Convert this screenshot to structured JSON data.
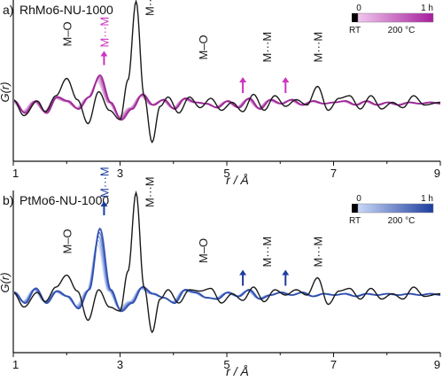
{
  "chart_data": [
    {
      "type": "line",
      "panel": "a)",
      "title": "RhMo6-NU-1000",
      "xlabel": "r / Å",
      "ylabel": "G(r)",
      "xlim": [
        1,
        9
      ],
      "xticks": [
        "1",
        "3",
        "5",
        "7",
        "9"
      ],
      "grid": false,
      "legend": {
        "placement": "top-right",
        "start_label": "0",
        "end_label": "1 h",
        "rt_label": "RT",
        "temp_label": "200 °C",
        "color_start": "#f0c6ee",
        "color_end": "#a61f9c"
      },
      "series_colors": [
        "#e3b8e0",
        "#d598d1",
        "#c271bd",
        "#ad47a6",
        "#9a1f92"
      ],
      "reference_color": "#1a1a1a",
      "reference": {
        "x": [
          1.0,
          1.2,
          1.45,
          1.6,
          1.8,
          2.0,
          2.2,
          2.4,
          2.6,
          2.8,
          3.0,
          3.15,
          3.3,
          3.45,
          3.6,
          3.75,
          3.9,
          4.1,
          4.3,
          4.5,
          4.7,
          4.9,
          5.1,
          5.3,
          5.5,
          5.7,
          5.9,
          6.1,
          6.3,
          6.5,
          6.7,
          6.9,
          7.1,
          7.3,
          7.5,
          7.7,
          7.9,
          8.1,
          8.3,
          8.5,
          8.7,
          9.0
        ],
        "y": [
          0.15,
          -0.45,
          0.1,
          -0.3,
          0.3,
          0.95,
          0.15,
          -0.75,
          0.45,
          -0.25,
          -0.6,
          0.9,
          3.85,
          0.3,
          -1.45,
          -0.1,
          0.25,
          -0.35,
          0.25,
          -0.15,
          0.2,
          -0.25,
          0.05,
          -0.3,
          0.35,
          -0.25,
          0.3,
          -0.1,
          0.15,
          -0.05,
          0.65,
          -0.25,
          0.2,
          0.3,
          -0.2,
          0.3,
          -0.2,
          0.05,
          -0.15,
          0.3,
          -0.05,
          0.05
        ]
      },
      "insitu_base": {
        "x": [
          1.0,
          1.2,
          1.4,
          1.6,
          1.8,
          2.0,
          2.2,
          2.4,
          2.6,
          2.8,
          3.0,
          3.2,
          3.4,
          3.6,
          3.8,
          4.0,
          4.2,
          4.4,
          4.6,
          4.8,
          5.0,
          5.2,
          5.4,
          5.6,
          5.8,
          6.0,
          6.2,
          6.4,
          6.6,
          6.8,
          7.0,
          7.2,
          7.4,
          7.6,
          7.8,
          8.0,
          8.2,
          8.4,
          8.6,
          8.8,
          9.0
        ],
        "y": [
          0.1,
          -0.35,
          0.1,
          -0.35,
          0.25,
          0.1,
          -0.2,
          0.25,
          1.05,
          0.05,
          -0.6,
          -0.2,
          0.35,
          -0.05,
          0.15,
          -0.2,
          0.2,
          0.05,
          0.0,
          -0.15,
          0.1,
          -0.15,
          0.2,
          -0.2,
          0.15,
          0.0,
          0.15,
          -0.05,
          0.1,
          0.0,
          0.05,
          0.1,
          -0.05,
          0.1,
          -0.05,
          0.05,
          -0.05,
          0.05,
          0.0,
          0.05,
          0.0
        ]
      },
      "annotations": [
        {
          "text": "M–O",
          "x": 2.0,
          "y": 2.15,
          "color": "#1a1a1a",
          "arrow": false
        },
        {
          "text": "M···M",
          "x": 2.7,
          "y": 2.05,
          "color": "#cc33c0",
          "arrow": true
        },
        {
          "text": "M···M",
          "x": 3.55,
          "y": 3.3,
          "color": "#1a1a1a",
          "arrow": false
        },
        {
          "text": "M–O",
          "x": 4.55,
          "y": 1.65,
          "color": "#1a1a1a",
          "arrow": false
        },
        {
          "text": "",
          "x": 5.3,
          "y": 0.6,
          "color": "#cc33c0",
          "arrow": true
        },
        {
          "text": "M···M",
          "x": 5.75,
          "y": 1.55,
          "color": "#1a1a1a",
          "arrow": false
        },
        {
          "text": "",
          "x": 6.1,
          "y": 0.6,
          "color": "#cc33c0",
          "arrow": true
        },
        {
          "text": "M···M",
          "x": 6.7,
          "y": 1.55,
          "color": "#1a1a1a",
          "arrow": false
        }
      ]
    },
    {
      "type": "line",
      "panel": "b)",
      "title": "PtMo6-NU-1000",
      "xlabel": "r / Å",
      "ylabel": "G(r)",
      "xlim": [
        1,
        9
      ],
      "xticks": [
        "1",
        "3",
        "5",
        "7",
        "9"
      ],
      "grid": false,
      "legend": {
        "placement": "top-right",
        "start_label": "0",
        "end_label": "1 h",
        "rt_label": "RT",
        "temp_label": "200 °C",
        "color_start": "#c9d8f7",
        "color_end": "#1d3d9e"
      },
      "series_colors": [
        "#c6d3f2",
        "#9fb4e8",
        "#7792db",
        "#4d6ccb",
        "#2747a8"
      ],
      "reference_color": "#1a1a1a",
      "reference": {
        "x": [
          1.0,
          1.2,
          1.45,
          1.6,
          1.8,
          2.0,
          2.2,
          2.4,
          2.6,
          2.8,
          3.0,
          3.15,
          3.3,
          3.45,
          3.6,
          3.75,
          3.9,
          4.1,
          4.3,
          4.5,
          4.7,
          4.9,
          5.1,
          5.3,
          5.5,
          5.7,
          5.9,
          6.1,
          6.3,
          6.5,
          6.7,
          6.9,
          7.1,
          7.3,
          7.5,
          7.7,
          7.9,
          8.1,
          8.3,
          8.5,
          8.7,
          9.0
        ],
        "y": [
          0.1,
          -0.45,
          0.1,
          -0.25,
          0.3,
          0.75,
          0.15,
          -0.95,
          0.2,
          -0.45,
          -0.6,
          0.9,
          3.85,
          0.3,
          -1.4,
          -0.15,
          0.2,
          -0.3,
          0.2,
          0.15,
          0.25,
          -0.3,
          0.05,
          -0.2,
          0.3,
          -0.25,
          0.2,
          0.0,
          0.2,
          0.0,
          0.65,
          -0.35,
          0.15,
          0.25,
          -0.15,
          0.25,
          -0.15,
          0.05,
          -0.15,
          0.3,
          -0.05,
          0.05
        ]
      },
      "insitu_base": {
        "x": [
          1.0,
          1.2,
          1.4,
          1.6,
          1.8,
          2.0,
          2.2,
          2.4,
          2.6,
          2.8,
          3.0,
          3.2,
          3.4,
          3.6,
          3.8,
          4.0,
          4.2,
          4.4,
          4.6,
          4.8,
          5.0,
          5.2,
          5.4,
          5.6,
          5.8,
          6.0,
          6.2,
          6.4,
          6.6,
          6.8,
          7.0,
          7.2,
          7.4,
          7.6,
          7.8,
          8.0,
          8.2,
          8.4,
          8.6,
          8.8,
          9.0
        ],
        "y": [
          0.1,
          -0.3,
          0.25,
          -0.3,
          0.15,
          -0.05,
          -0.5,
          0.2,
          2.45,
          0.2,
          -0.6,
          -0.3,
          0.3,
          0.05,
          -0.1,
          -0.3,
          0.2,
          0.1,
          -0.1,
          -0.15,
          0.1,
          -0.05,
          0.2,
          -0.15,
          0.0,
          0.1,
          0.0,
          0.1,
          -0.05,
          0.05,
          0.0,
          0.05,
          -0.05,
          0.05,
          0.0,
          0.05,
          0.0,
          0.05,
          0.0,
          0.05,
          0.0
        ]
      },
      "annotations": [
        {
          "text": "M–O",
          "x": 2.0,
          "y": 1.55,
          "color": "#1a1a1a",
          "arrow": false
        },
        {
          "text": "M···M",
          "x": 2.7,
          "y": 3.6,
          "color": "#1d3d9e",
          "arrow": true
        },
        {
          "text": "M···M",
          "x": 3.55,
          "y": 3.3,
          "color": "#1a1a1a",
          "arrow": false
        },
        {
          "text": "M–O",
          "x": 4.55,
          "y": 1.2,
          "color": "#1a1a1a",
          "arrow": false
        },
        {
          "text": "",
          "x": 5.3,
          "y": 0.55,
          "color": "#1d3d9e",
          "arrow": true
        },
        {
          "text": "M···M",
          "x": 5.75,
          "y": 1.05,
          "color": "#1a1a1a",
          "arrow": false
        },
        {
          "text": "",
          "x": 6.1,
          "y": 0.55,
          "color": "#1d3d9e",
          "arrow": true
        },
        {
          "text": "M···M",
          "x": 6.7,
          "y": 1.05,
          "color": "#1a1a1a",
          "arrow": false
        }
      ]
    }
  ]
}
